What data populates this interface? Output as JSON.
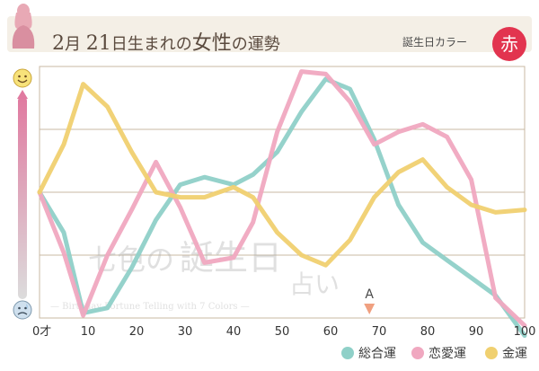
{
  "header": {
    "title_month_num": "2",
    "title_month_char": "月",
    "title_day_num": "21",
    "title_rest_a": "日生まれの",
    "title_rest_big": "女性",
    "title_rest_b": "の運勢",
    "color_label": "誕生日カラー",
    "color_badge": "赤"
  },
  "watermark": {
    "line1a": "七色の",
    "line1b": "誕生日",
    "line2": "占い",
    "subtitle": "— Birthday Fortune Telling with 7 Colors —"
  },
  "marker": {
    "label": "A",
    "x_value": 68
  },
  "colors": {
    "overall": "#8fd0c8",
    "love": "#f0a8c0",
    "money": "#f0d070",
    "grid": "#c9b9a3",
    "axis_gradient_top": "#e07aa0",
    "axis_gradient_bottom": "#dcdcdc",
    "marker": "#f0a080"
  },
  "icons": {
    "top": "happy-face-icon",
    "bottom": "sad-face-icon"
  },
  "chart_data": {
    "type": "line",
    "xlim": [
      0,
      100
    ],
    "ylim": [
      0,
      100
    ],
    "x_ticks": [
      "0才",
      "10",
      "20",
      "30",
      "40",
      "50",
      "60",
      "70",
      "80",
      "90",
      "100"
    ],
    "x": [
      0,
      5,
      9,
      14,
      19,
      24,
      29,
      34,
      40,
      44,
      49,
      54,
      59,
      64,
      69,
      74,
      79,
      84,
      89,
      94,
      100
    ],
    "series": [
      {
        "name": "総合運",
        "color": "#8fd0c8",
        "values": [
          50,
          34,
          2,
          4,
          20,
          39,
          53,
          56,
          53,
          57,
          66,
          82,
          95,
          91,
          71,
          45,
          30,
          23,
          16,
          9,
          -7
        ]
      },
      {
        "name": "恋愛運",
        "color": "#f0a8c0",
        "values": [
          50,
          26,
          1,
          25,
          43,
          62,
          44,
          22,
          24,
          38,
          74,
          98,
          97,
          86,
          69,
          74,
          77,
          72,
          55,
          8,
          -3
        ]
      },
      {
        "name": "金運",
        "color": "#f0d070",
        "values": [
          50,
          69,
          93,
          84,
          66,
          50,
          48,
          48,
          52,
          48,
          34,
          25,
          21,
          31,
          48,
          58,
          63,
          52,
          45,
          42,
          43
        ]
      }
    ],
    "legend_position": "bottom-right",
    "grid": true
  }
}
